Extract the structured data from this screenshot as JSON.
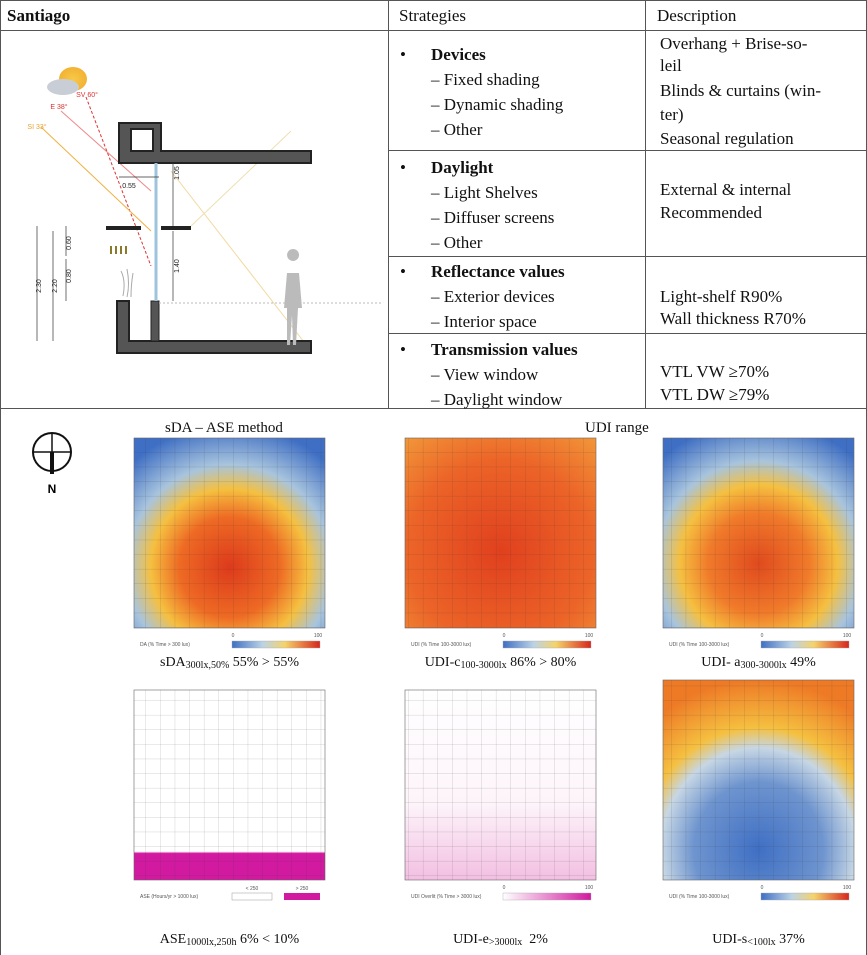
{
  "header": {
    "location": "Santiago",
    "strategies": "Strategies",
    "description": "Description"
  },
  "rows": [
    {
      "title": "Devices",
      "items": [
        "– Fixed shading",
        "– Dynamic shading",
        "– Other"
      ],
      "description": [
        "Overhang + Brise-so-",
        "leil",
        "Blinds & curtains (win-",
        "ter)",
        "Seasonal regulation"
      ]
    },
    {
      "title": "Daylight",
      "items": [
        "– Light Shelves",
        "– Diffuser screens",
        "– Other"
      ],
      "description": [
        "External & internal",
        "Recommended"
      ]
    },
    {
      "title": "Reflectance values",
      "items": [
        "– Exterior devices",
        "– Interior space"
      ],
      "description": [
        "Light-shelf R90%",
        "Wall thickness R70%"
      ]
    },
    {
      "title": "Transmission values",
      "items": [
        "– View window",
        "– Daylight window"
      ],
      "description": [
        "VTL VW ≥70%",
        "VTL DW ≥79%"
      ]
    }
  ],
  "section_drawing": {
    "labels": [
      "SV 60°",
      "E 38°",
      "SI 33°",
      "0.55",
      "1.05",
      "1.40",
      "0.60",
      "0.80",
      "2.30",
      "2.20"
    ]
  },
  "results": {
    "headings": [
      "sDA – ASE method",
      "UDI range"
    ],
    "compass": "N",
    "maps": [
      {
        "legend_title": "DA (% Time > 300 lux)",
        "legend_min": "0",
        "legend_max": "100",
        "caption": {
          "main": "sDA",
          "sub": "300lx,50%",
          "rest": " 55% > 55%"
        }
      },
      {
        "legend_title": "UDI (% Time 100-3000 lux)",
        "legend_min": "0",
        "legend_max": "100",
        "caption": {
          "main": "UDI-c",
          "sub": "100-3000lx",
          "rest": " 86% > 80%"
        }
      },
      {
        "legend_title": "UDI (% Time 100-3000 lux)",
        "legend_min": "0",
        "legend_max": "100",
        "caption": {
          "main": "UDI- a",
          "sub": "300-3000lx",
          "rest": " 49%"
        }
      },
      {
        "legend_title": "ASE (Hours/yr > 1000 lux)",
        "legend_min": "< 250",
        "legend_max": "> 250",
        "caption": {
          "main": "ASE",
          "sub": "1000lx,250h",
          "rest": " 6% < 10%"
        }
      },
      {
        "legend_title": "UDI Overlit (% Time > 3000 lux)",
        "legend_min": "0",
        "legend_max": "100",
        "caption": {
          "main": "UDI-e",
          "sub": ">3000lx",
          "rest": "  2%"
        }
      },
      {
        "legend_title": "UDI (% Time 100-3000 lux)",
        "legend_min": "0",
        "legend_max": "100",
        "caption": {
          "main": "UDI-s",
          "sub": "<100lx",
          "rest": " 37%"
        }
      }
    ]
  }
}
